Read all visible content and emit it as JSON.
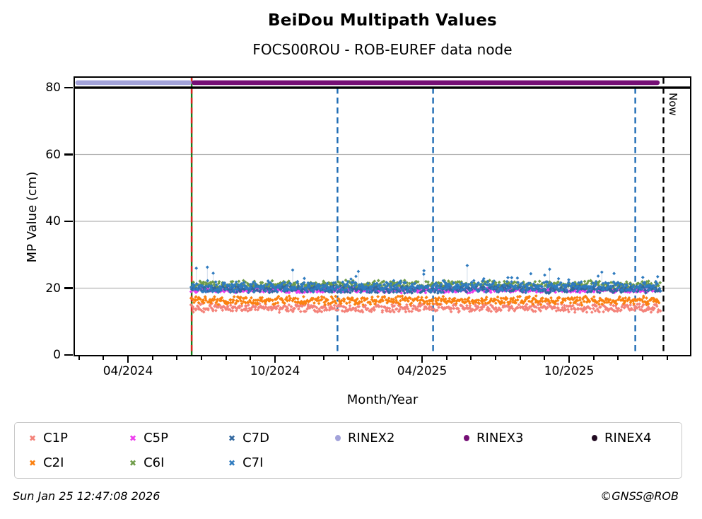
{
  "header": {
    "title": "BeiDou Multipath Values",
    "subtitle": "FOCS00ROU - ROB-EUREF data node"
  },
  "chart_data": {
    "type": "scatter",
    "title": "BeiDou Multipath Values",
    "subtitle": "FOCS00ROU - ROB-EUREF data node",
    "xlabel": "Month/Year",
    "ylabel": "MP Value (cm)",
    "ylim": [
      0,
      83
    ],
    "yticks": [
      0,
      20,
      40,
      60,
      80
    ],
    "grid": {
      "horizontal": true,
      "vertical": false,
      "color": "#b5b5b5"
    },
    "x_axis_start": "2024-01-26",
    "x_axis_end": "2026-02-27",
    "xticks": [
      {
        "label": "04/2024",
        "month": 3
      },
      {
        "label": "10/2024",
        "month": 9
      },
      {
        "label": "04/2025",
        "month": 15
      },
      {
        "label": "10/2025",
        "month": 21
      }
    ],
    "minor_tick_months": {
      "from": 1,
      "to": 25
    },
    "series": [
      {
        "label": "C1P",
        "color": "#f4837a",
        "mean": 14.1,
        "spread": 1.5,
        "start": "2024-06-19",
        "end": "2026-01-22",
        "month_start": 5.6,
        "month_end": 24.7,
        "points": 560
      },
      {
        "label": "C2I",
        "color": "#fb8111",
        "mean": 16.3,
        "spread": 1.5,
        "start": "2024-06-19",
        "end": "2026-01-22",
        "month_start": 5.6,
        "month_end": 24.7,
        "points": 560
      },
      {
        "label": "C5P",
        "color": "#ee3cee",
        "mean": 19.4,
        "spread": 0.9,
        "start": "2024-06-19",
        "end": "2026-01-22",
        "month_start": 5.6,
        "month_end": 24.7,
        "points": 560
      },
      {
        "label": "C6I",
        "color": "#6f9c49",
        "mean": 21.0,
        "spread": 1.5,
        "start": "2024-06-19",
        "end": "2026-01-22",
        "month_start": 5.6,
        "month_end": 24.7,
        "points": 560
      },
      {
        "label": "C7D",
        "color": "#31679f",
        "mean": 19.7,
        "spread": 1.3,
        "start": "2024-06-19",
        "end": "2026-01-22",
        "month_start": 5.6,
        "month_end": 24.7,
        "points": 560
      },
      {
        "label": "C7I",
        "color": "#2f7bbf",
        "mean": 20.4,
        "spread": 1.9,
        "start": "2024-06-19",
        "end": "2026-01-22",
        "month_start": 5.6,
        "month_end": 24.7,
        "points": 560,
        "spikes": {
          "probability_base": 0.04,
          "probability_growth": 0.07,
          "extra_min": 1.5,
          "extra_max": 7.0,
          "stem_color": "rgba(100,140,190,0.3)"
        }
      }
    ],
    "availability_bands": [
      {
        "label": "RINEX2",
        "value": 81.5,
        "start": "2024-01-26",
        "end": "2024-06-19",
        "month_start": 0.85,
        "month_end": 5.6,
        "color": "#a3a3da"
      },
      {
        "label": "RINEX3",
        "value": 81.5,
        "start": "2024-06-19",
        "end": "2026-01-22",
        "month_start": 5.6,
        "month_end": 24.7,
        "color": "#750e75"
      }
    ],
    "threshold_line": {
      "value": 80,
      "color": "#000000"
    },
    "event_lines": [
      {
        "date": "2024-06-19",
        "month": 5.6,
        "color": "#177c17",
        "style": "solid",
        "extent": "full"
      },
      {
        "date": "2024-06-19",
        "month": 5.6,
        "color": "#e02020",
        "style": "dashed",
        "extent": "full"
      },
      {
        "date": "2024-12-17",
        "month": 11.55,
        "color": "#1e6cb5",
        "style": "dashed",
        "extent": "below-threshold"
      },
      {
        "date": "2025-04-14",
        "month": 15.45,
        "color": "#1e6cb5",
        "style": "dashed",
        "extent": "below-threshold"
      },
      {
        "date": "2025-12-22",
        "month": 23.7,
        "color": "#1e6cb5",
        "style": "dashed",
        "extent": "below-threshold"
      },
      {
        "date": "2026-01-25",
        "month": 24.85,
        "color": "#000000",
        "style": "dashed",
        "extent": "full",
        "label": "Now"
      }
    ],
    "now_label": "Now"
  },
  "legend": {
    "items": [
      {
        "label": "C1P",
        "color": "#f4837a",
        "marker": "x-diamond"
      },
      {
        "label": "C5P",
        "color": "#ee3cee",
        "marker": "x-diamond"
      },
      {
        "label": "C7D",
        "color": "#31679f",
        "marker": "x-diamond"
      },
      {
        "label": "RINEX2",
        "color": "#a3a3da",
        "marker": "circle"
      },
      {
        "label": "RINEX3",
        "color": "#750e75",
        "marker": "circle"
      },
      {
        "label": "RINEX4",
        "color": "#210a21",
        "marker": "circle"
      },
      {
        "label": "C2I",
        "color": "#fb8111",
        "marker": "x-diamond"
      },
      {
        "label": "C6I",
        "color": "#6f9c49",
        "marker": "x-diamond"
      },
      {
        "label": "C7I",
        "color": "#2f7bbf",
        "marker": "x-diamond"
      }
    ]
  },
  "footer": {
    "timestamp": "Sun Jan 25 12:47:08 2026",
    "copyright": "©GNSS@ROB"
  }
}
